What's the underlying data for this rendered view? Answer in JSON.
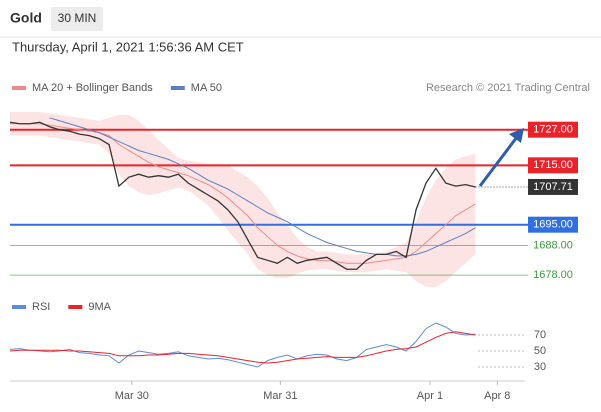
{
  "header": {
    "title": "Gold",
    "interval": "30 MIN",
    "datetime": "Thursday, April 1, 2021 1:56:36 AM CET"
  },
  "chart_data": [
    {
      "type": "line",
      "source": "Research © 2021 Trading Central",
      "x": [
        0,
        1,
        2,
        3,
        4,
        5,
        6,
        7,
        8,
        9,
        10,
        11,
        12,
        13,
        14,
        15,
        16,
        17,
        18,
        19,
        20,
        21,
        22,
        23,
        24,
        25,
        26,
        27,
        28,
        29,
        30,
        31,
        32,
        33,
        34,
        35,
        36,
        37,
        38,
        39,
        40,
        41,
        42,
        43,
        44,
        45,
        46,
        47
      ],
      "xlim": [
        0,
        52
      ],
      "ylim": [
        1673,
        1737
      ],
      "series": [
        {
          "name": "MA 20 + Bollinger Bands",
          "color": "#f08a8a",
          "band_color": "#fcd9d9",
          "values": [
            1729,
            1729,
            1729,
            1729,
            1728.5,
            1728,
            1727.5,
            1727,
            1726.5,
            1726,
            1725,
            1722,
            1720,
            1718,
            1716,
            1714.5,
            1713.5,
            1712.5,
            1711.5,
            1710,
            1708.5,
            1706.5,
            1704,
            1701,
            1698,
            1694,
            1691,
            1688,
            1686,
            1684.5,
            1683.5,
            1683,
            1683,
            1682.5,
            1682,
            1682,
            1682,
            1682.5,
            1683,
            1683.5,
            1684,
            1686,
            1689,
            1692,
            1695,
            1698,
            1700,
            1702
          ],
          "upper": [
            1733,
            1733,
            1733,
            1733,
            1732.5,
            1732,
            1731.5,
            1731,
            1730.5,
            1730,
            1731,
            1732,
            1732,
            1730,
            1727,
            1723.5,
            1720.5,
            1717.5,
            1716.5,
            1716,
            1715.5,
            1715.5,
            1715,
            1713,
            1711,
            1708,
            1704,
            1699,
            1695,
            1690.5,
            1687.5,
            1686,
            1686,
            1685.5,
            1685,
            1685,
            1685,
            1685.5,
            1686,
            1687.5,
            1689,
            1696,
            1704,
            1710,
            1714,
            1717,
            1718,
            1719
          ],
          "lower": [
            1725,
            1725,
            1725,
            1725,
            1724.5,
            1724,
            1723.5,
            1723,
            1722.5,
            1722,
            1719,
            1712,
            1708,
            1706,
            1705,
            1705.5,
            1706.5,
            1707.5,
            1706.5,
            1704,
            1701.5,
            1697.5,
            1693,
            1689,
            1685,
            1680,
            1678,
            1677,
            1677,
            1678.5,
            1679.5,
            1680,
            1680,
            1679.5,
            1679,
            1679,
            1679,
            1679.5,
            1680,
            1679.5,
            1679,
            1676,
            1674,
            1674,
            1676,
            1679,
            1682,
            1685
          ]
        },
        {
          "name": "MA 50",
          "color": "#5b7fc1",
          "values": [
            null,
            null,
            null,
            null,
            1731,
            1730,
            1729,
            1728,
            1727,
            1726,
            1724.5,
            1723,
            1721.5,
            1720,
            1719,
            1718,
            1717,
            1715.5,
            1714,
            1712,
            1710,
            1708.5,
            1707,
            1705,
            1703,
            1701,
            1699,
            1697.5,
            1696,
            1694,
            1692,
            1690.5,
            1689,
            1688,
            1687,
            1686,
            1685.5,
            1685,
            1685,
            1684.5,
            1684.5,
            1685,
            1686,
            1687.5,
            1689,
            1690.5,
            1692,
            1694
          ]
        },
        {
          "color": "#333333",
          "values": [
            1729.5,
            1729,
            1729,
            1729.5,
            1728,
            1727,
            1726.5,
            1725.5,
            1725,
            1724,
            1722,
            1708,
            1711,
            1712,
            1711,
            1711.5,
            1711,
            1712,
            1709,
            1707,
            1705,
            1703,
            1700,
            1696,
            1690,
            1684,
            1683,
            1682,
            1684,
            1682,
            1683,
            1683.5,
            1684,
            1682,
            1680,
            1680,
            1683,
            1685,
            1685,
            1686,
            1684,
            1700,
            1709,
            1714,
            1709,
            1708,
            1708.5,
            1707.71
          ]
        }
      ],
      "levels": [
        {
          "value": 1727,
          "label": "1727.00",
          "color": "#e8232a",
          "boxed": true
        },
        {
          "value": 1715,
          "label": "1715.00",
          "color": "#e8232a",
          "boxed": true
        },
        {
          "value": 1695,
          "label": "1695.00",
          "color": "#2f6fe0",
          "boxed": true
        },
        {
          "value": 1688,
          "label": "1688.00",
          "color": "#3c9a3c",
          "boxed": false
        },
        {
          "value": 1678,
          "label": "1678.00",
          "color": "#3c9a3c",
          "boxed": false
        }
      ],
      "last_price": 1707.71
    },
    {
      "type": "line",
      "x": [
        0,
        1,
        2,
        3,
        4,
        5,
        6,
        7,
        8,
        9,
        10,
        11,
        12,
        13,
        14,
        15,
        16,
        17,
        18,
        19,
        20,
        21,
        22,
        23,
        24,
        25,
        26,
        27,
        28,
        29,
        30,
        31,
        32,
        33,
        34,
        35,
        36,
        37,
        38,
        39,
        40,
        41,
        42,
        43,
        44,
        45,
        46,
        47
      ],
      "xlim": [
        0,
        52
      ],
      "ylim": [
        5,
        90
      ],
      "yticks": [
        70,
        50,
        30
      ],
      "xticks": [
        {
          "value": 12.3,
          "label": "Mar 30"
        },
        {
          "value": 27.3,
          "label": "Mar 31"
        },
        {
          "value": 42.4,
          "label": "Apr 1"
        },
        {
          "value": 49.2,
          "label": "Apr 8"
        }
      ],
      "series": [
        {
          "name": "RSI",
          "color": "#5b8be0",
          "values": [
            52,
            53,
            51,
            50,
            49,
            50,
            52,
            48,
            47,
            45,
            44,
            35,
            45,
            50,
            48,
            46,
            47,
            49,
            44,
            42,
            40,
            41,
            39,
            36,
            33,
            30,
            38,
            42,
            45,
            40,
            44,
            46,
            45,
            40,
            38,
            42,
            52,
            55,
            58,
            55,
            50,
            62,
            78,
            85,
            80,
            72,
            70,
            71
          ]
        },
        {
          "name": "9MA",
          "color": "#e8232a",
          "values": [
            50,
            51,
            51,
            51,
            51,
            51,
            50,
            50,
            49,
            48,
            47,
            44,
            44,
            44,
            45,
            45,
            46,
            47,
            47,
            46,
            45,
            44,
            42,
            40,
            38,
            36,
            35,
            36,
            38,
            40,
            41,
            42,
            43,
            42,
            42,
            42,
            44,
            47,
            50,
            52,
            53,
            55,
            61,
            67,
            72,
            74,
            72,
            70
          ]
        }
      ]
    }
  ]
}
